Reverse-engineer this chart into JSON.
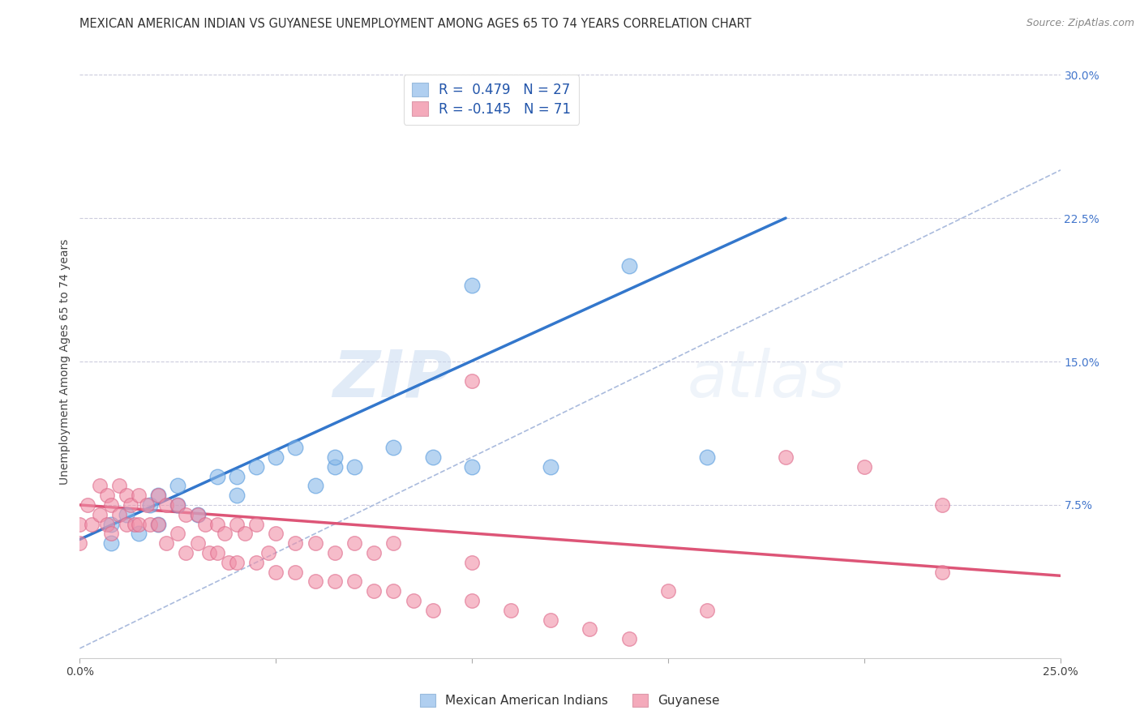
{
  "title": "MEXICAN AMERICAN INDIAN VS GUYANESE UNEMPLOYMENT AMONG AGES 65 TO 74 YEARS CORRELATION CHART",
  "source": "Source: ZipAtlas.com",
  "ylabel": "Unemployment Among Ages 65 to 74 years",
  "xlim": [
    0,
    0.25
  ],
  "ylim": [
    -0.005,
    0.305
  ],
  "legend_blue_label": "R =  0.479   N = 27",
  "legend_pink_label": "R = -0.145   N = 71",
  "legend_blue_color": "#b0cff0",
  "legend_pink_color": "#f4aabb",
  "blue_dot_color": "#88b8e8",
  "pink_dot_color": "#f090a8",
  "blue_line_color": "#3377cc",
  "pink_line_color": "#dd5577",
  "ref_line_color": "#aabbdd",
  "watermark_zip": "ZIP",
  "watermark_atlas": "atlas",
  "blue_scatter_x": [
    0.008,
    0.008,
    0.012,
    0.015,
    0.018,
    0.02,
    0.02,
    0.025,
    0.025,
    0.03,
    0.035,
    0.04,
    0.04,
    0.045,
    0.05,
    0.055,
    0.06,
    0.065,
    0.065,
    0.07,
    0.08,
    0.09,
    0.1,
    0.1,
    0.12,
    0.14,
    0.16
  ],
  "blue_scatter_y": [
    0.065,
    0.055,
    0.07,
    0.06,
    0.075,
    0.065,
    0.08,
    0.075,
    0.085,
    0.07,
    0.09,
    0.08,
    0.09,
    0.095,
    0.1,
    0.105,
    0.085,
    0.095,
    0.1,
    0.095,
    0.105,
    0.1,
    0.095,
    0.19,
    0.095,
    0.2,
    0.1
  ],
  "pink_scatter_x": [
    0.0,
    0.0,
    0.002,
    0.003,
    0.005,
    0.005,
    0.007,
    0.007,
    0.008,
    0.008,
    0.01,
    0.01,
    0.012,
    0.012,
    0.013,
    0.014,
    0.015,
    0.015,
    0.017,
    0.018,
    0.02,
    0.02,
    0.022,
    0.022,
    0.025,
    0.025,
    0.027,
    0.027,
    0.03,
    0.03,
    0.032,
    0.033,
    0.035,
    0.035,
    0.037,
    0.038,
    0.04,
    0.04,
    0.042,
    0.045,
    0.045,
    0.048,
    0.05,
    0.05,
    0.055,
    0.055,
    0.06,
    0.06,
    0.065,
    0.065,
    0.07,
    0.07,
    0.075,
    0.075,
    0.08,
    0.08,
    0.085,
    0.09,
    0.1,
    0.1,
    0.11,
    0.12,
    0.13,
    0.14,
    0.15,
    0.16,
    0.18,
    0.2,
    0.22,
    0.22,
    0.1
  ],
  "pink_scatter_y": [
    0.065,
    0.055,
    0.075,
    0.065,
    0.085,
    0.07,
    0.08,
    0.065,
    0.075,
    0.06,
    0.085,
    0.07,
    0.08,
    0.065,
    0.075,
    0.065,
    0.08,
    0.065,
    0.075,
    0.065,
    0.08,
    0.065,
    0.075,
    0.055,
    0.075,
    0.06,
    0.07,
    0.05,
    0.07,
    0.055,
    0.065,
    0.05,
    0.065,
    0.05,
    0.06,
    0.045,
    0.065,
    0.045,
    0.06,
    0.065,
    0.045,
    0.05,
    0.06,
    0.04,
    0.055,
    0.04,
    0.055,
    0.035,
    0.05,
    0.035,
    0.055,
    0.035,
    0.05,
    0.03,
    0.055,
    0.03,
    0.025,
    0.02,
    0.045,
    0.025,
    0.02,
    0.015,
    0.01,
    0.005,
    0.03,
    0.02,
    0.1,
    0.095,
    0.075,
    0.04,
    0.14
  ],
  "blue_line_x": [
    0.0,
    0.18
  ],
  "blue_line_y": [
    0.057,
    0.225
  ],
  "pink_line_x": [
    0.0,
    0.25
  ],
  "pink_line_y": [
    0.075,
    0.038
  ],
  "ref_line_x": [
    0.0,
    0.305
  ],
  "ref_line_y": [
    0.0,
    0.305
  ],
  "title_fontsize": 10.5,
  "axis_label_fontsize": 10,
  "tick_fontsize": 10,
  "legend_fontsize": 12,
  "source_fontsize": 9
}
